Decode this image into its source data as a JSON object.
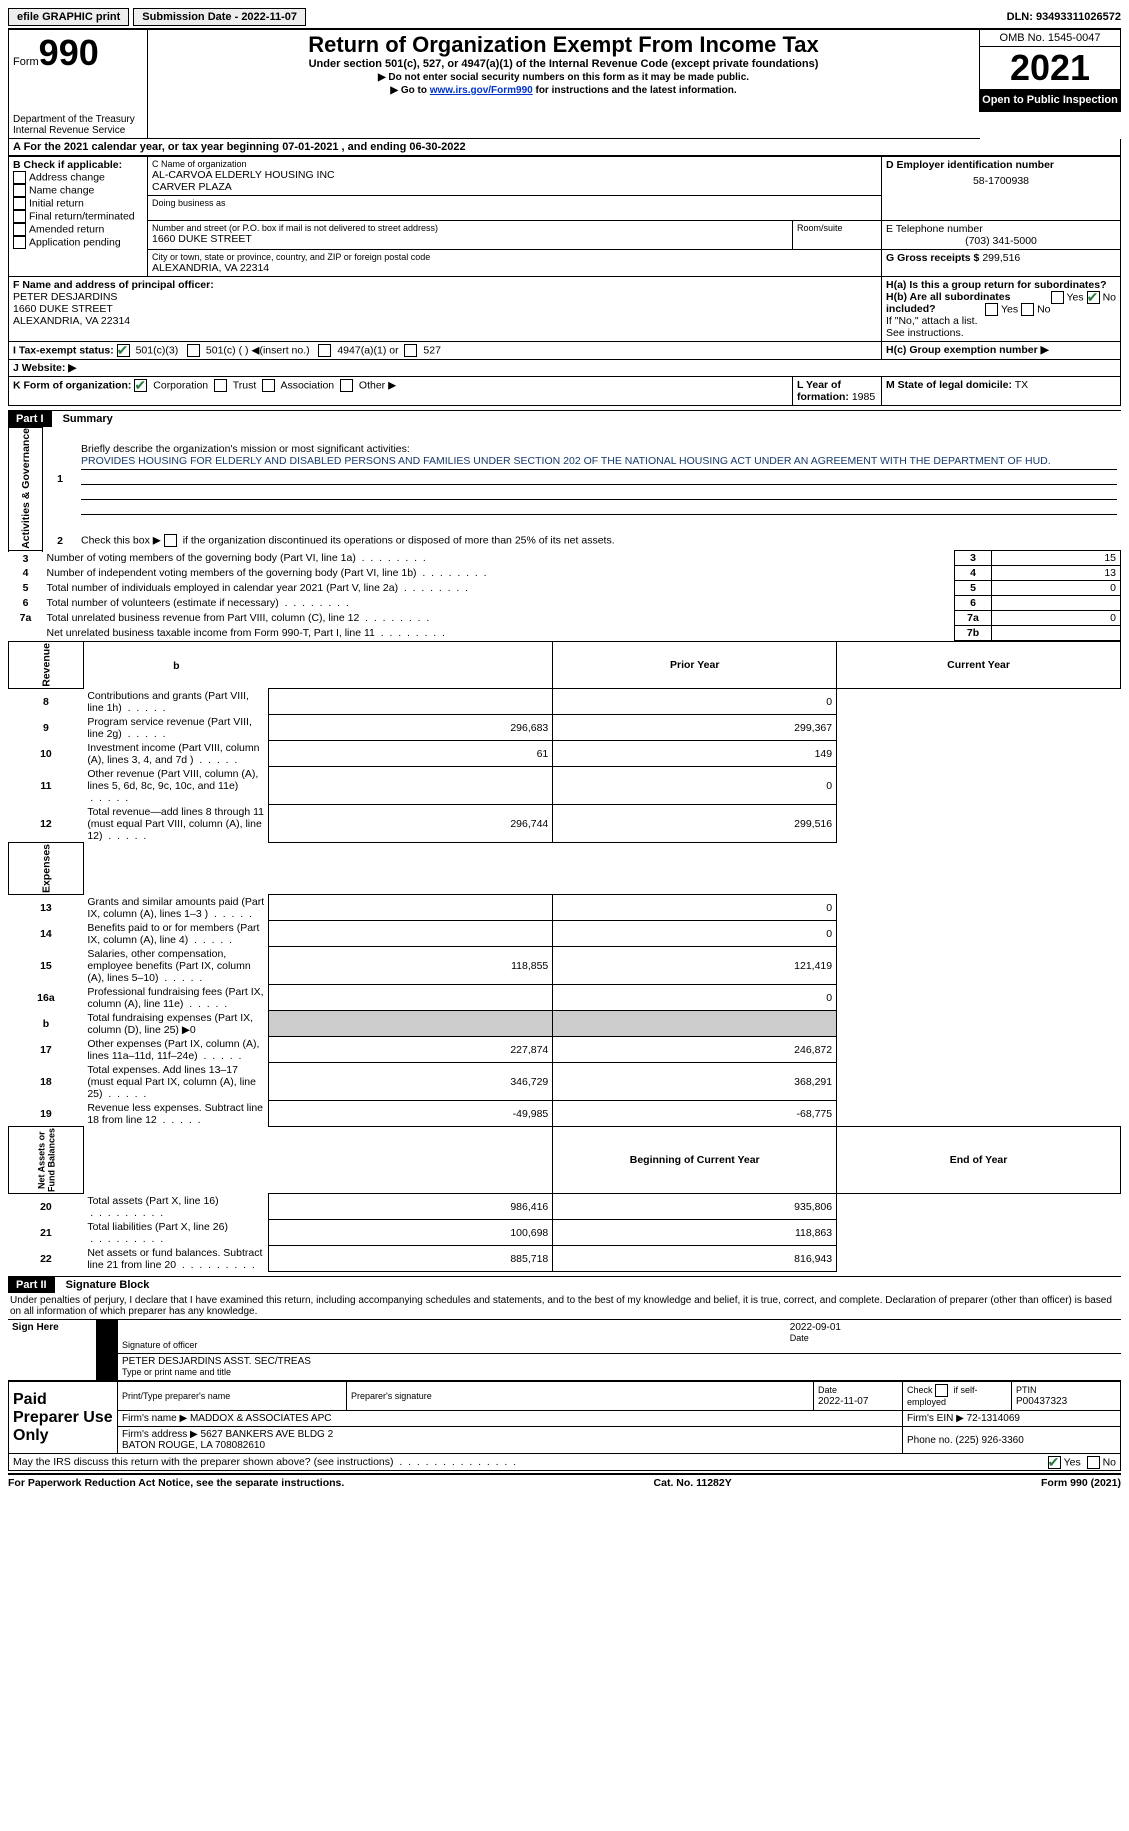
{
  "topbar": {
    "efile": "efile GRAPHIC print",
    "sub_date_label": "Submission Date - 2022-11-07",
    "dln": "DLN: 93493311026572"
  },
  "header": {
    "form_label": "Form",
    "form_num": "990",
    "dept": "Department of the Treasury\nInternal Revenue Service",
    "title": "Return of Organization Exempt From Income Tax",
    "subtitle": "Under section 501(c), 527, or 4947(a)(1) of the Internal Revenue Code (except private foundations)",
    "arrow1": "Do not enter social security numbers on this form as it may be made public.",
    "arrow2_pre": "Go to ",
    "arrow2_link": "www.irs.gov/Form990",
    "arrow2_post": " for instructions and the latest information.",
    "omb": "OMB No. 1545-0047",
    "year": "2021",
    "inspection": "Open to Public Inspection"
  },
  "sectionA": {
    "text": "A For the 2021 calendar year, or tax year beginning 07-01-2021    , and ending 06-30-2022"
  },
  "sectionB": {
    "label": "B Check if applicable:",
    "items": [
      "Address change",
      "Name change",
      "Initial return",
      "Final return/terminated",
      "Amended return",
      "Application pending"
    ]
  },
  "sectionC": {
    "name_label": "C Name of organization",
    "name": "AL-CARVOA ELDERLY HOUSING INC\nCARVER PLAZA",
    "dba_label": "Doing business as",
    "addr_label": "Number and street (or P.O. box if mail is not delivered to street address)",
    "room_label": "Room/suite",
    "addr": "1660 DUKE STREET",
    "city_label": "City or town, state or province, country, and ZIP or foreign postal code",
    "city": "ALEXANDRIA, VA  22314"
  },
  "sectionD": {
    "label": "D Employer identification number",
    "value": "58-1700938"
  },
  "sectionE": {
    "label": "E Telephone number",
    "value": "(703) 341-5000"
  },
  "sectionG": {
    "label": "G Gross receipts $",
    "value": "299,516"
  },
  "sectionF": {
    "label": "F Name and address of principal officer:",
    "value": "PETER DESJARDINS\n1660 DUKE STREET\nALEXANDRIA, VA  22314"
  },
  "sectionH": {
    "ha": "H(a)  Is this a group return for subordinates?",
    "hb": "H(b)  Are all subordinates included?",
    "hnote": "If \"No,\" attach a list. See instructions.",
    "hc": "H(c)  Group exemption number ▶",
    "yes": "Yes",
    "no": "No"
  },
  "sectionI": {
    "label": "I  Tax-exempt status:",
    "opt1": "501(c)(3)",
    "opt2": "501(c) (  ) ◀(insert no.)",
    "opt3": "4947(a)(1) or",
    "opt4": "527"
  },
  "sectionJ": {
    "label": "J  Website: ▶"
  },
  "sectionK": {
    "label": "K Form of organization:",
    "opts": [
      "Corporation",
      "Trust",
      "Association",
      "Other ▶"
    ]
  },
  "sectionL": {
    "label": "L Year of formation:",
    "value": "1985"
  },
  "sectionM": {
    "label": "M State of legal domicile:",
    "value": "TX"
  },
  "part1": {
    "header": "Part I",
    "title": "Summary",
    "line1_label": "Briefly describe the organization's mission or most significant activities:",
    "line1_text": "PROVIDES HOUSING FOR ELDERLY AND DISABLED PERSONS AND FAMILIES UNDER SECTION 202 OF THE NATIONAL HOUSING ACT UNDER AN AGREEMENT WITH THE DEPARTMENT OF HUD.",
    "line2": "Check this box ▶        if the organization discontinued its operations or disposed of more than 25% of its net assets.",
    "rows_ag": [
      {
        "n": "3",
        "t": "Number of voting members of the governing body (Part VI, line 1a)",
        "box": "3",
        "v": "15"
      },
      {
        "n": "4",
        "t": "Number of independent voting members of the governing body (Part VI, line 1b)",
        "box": "4",
        "v": "13"
      },
      {
        "n": "5",
        "t": "Total number of individuals employed in calendar year 2021 (Part V, line 2a)",
        "box": "5",
        "v": "0"
      },
      {
        "n": "6",
        "t": "Total number of volunteers (estimate if necessary)",
        "box": "6",
        "v": ""
      },
      {
        "n": "7a",
        "t": "Total unrelated business revenue from Part VIII, column (C), line 12",
        "box": "7a",
        "v": "0"
      },
      {
        "n": "",
        "t": "Net unrelated business taxable income from Form 990-T, Part I, line 11",
        "box": "7b",
        "v": ""
      }
    ],
    "col_prior": "Prior Year",
    "col_current": "Current Year",
    "revenue_rows": [
      {
        "n": "8",
        "t": "Contributions and grants (Part VIII, line 1h)",
        "p": "",
        "c": "0"
      },
      {
        "n": "9",
        "t": "Program service revenue (Part VIII, line 2g)",
        "p": "296,683",
        "c": "299,367"
      },
      {
        "n": "10",
        "t": "Investment income (Part VIII, column (A), lines 3, 4, and 7d )",
        "p": "61",
        "c": "149"
      },
      {
        "n": "11",
        "t": "Other revenue (Part VIII, column (A), lines 5, 6d, 8c, 9c, 10c, and 11e)",
        "p": "",
        "c": "0"
      },
      {
        "n": "12",
        "t": "Total revenue—add lines 8 through 11 (must equal Part VIII, column (A), line 12)",
        "p": "296,744",
        "c": "299,516"
      }
    ],
    "expense_rows": [
      {
        "n": "13",
        "t": "Grants and similar amounts paid (Part IX, column (A), lines 1–3 )",
        "p": "",
        "c": "0"
      },
      {
        "n": "14",
        "t": "Benefits paid to or for members (Part IX, column (A), line 4)",
        "p": "",
        "c": "0"
      },
      {
        "n": "15",
        "t": "Salaries, other compensation, employee benefits (Part IX, column (A), lines 5–10)",
        "p": "118,855",
        "c": "121,419"
      },
      {
        "n": "16a",
        "t": "Professional fundraising fees (Part IX, column (A), line 11e)",
        "p": "",
        "c": "0"
      },
      {
        "n": "b",
        "t": "Total fundraising expenses (Part IX, column (D), line 25) ▶0",
        "p": "shaded",
        "c": "shaded"
      },
      {
        "n": "17",
        "t": "Other expenses (Part IX, column (A), lines 11a–11d, 11f–24e)",
        "p": "227,874",
        "c": "246,872"
      },
      {
        "n": "18",
        "t": "Total expenses. Add lines 13–17 (must equal Part IX, column (A), line 25)",
        "p": "346,729",
        "c": "368,291"
      },
      {
        "n": "19",
        "t": "Revenue less expenses. Subtract line 18 from line 12",
        "p": "-49,985",
        "c": "-68,775"
      }
    ],
    "col_boy": "Beginning of Current Year",
    "col_eoy": "End of Year",
    "net_rows": [
      {
        "n": "20",
        "t": "Total assets (Part X, line 16)",
        "p": "986,416",
        "c": "935,806"
      },
      {
        "n": "21",
        "t": "Total liabilities (Part X, line 26)",
        "p": "100,698",
        "c": "118,863"
      },
      {
        "n": "22",
        "t": "Net assets or fund balances. Subtract line 21 from line 20",
        "p": "885,718",
        "c": "816,943"
      }
    ],
    "vlabels": {
      "ag": "Activities & Governance",
      "rev": "Revenue",
      "exp": "Expenses",
      "net": "Net Assets or\nFund Balances"
    }
  },
  "part2": {
    "header": "Part II",
    "title": "Signature Block",
    "penalty": "Under penalties of perjury, I declare that I have examined this return, including accompanying schedules and statements, and to the best of my knowledge and belief, it is true, correct, and complete. Declaration of preparer (other than officer) is based on all information of which preparer has any knowledge.",
    "sign_here": "Sign Here",
    "sig_officer": "Signature of officer",
    "sig_date": "2022-09-01",
    "date_label": "Date",
    "typed_name": "PETER DESJARDINS  ASST. SEC/TREAS",
    "typed_label": "Type or print name and title",
    "paid_label": "Paid Preparer Use Only",
    "prep_name_label": "Print/Type preparer's name",
    "prep_sig_label": "Preparer's signature",
    "prep_date_label": "Date",
    "prep_date": "2022-11-07",
    "check_self": "Check        if self-employed",
    "ptin_label": "PTIN",
    "ptin": "P00437323",
    "firm_name_label": "Firm's name     ▶",
    "firm_name": "MADDOX & ASSOCIATES APC",
    "firm_ein_label": "Firm's EIN ▶",
    "firm_ein": "72-1314069",
    "firm_addr_label": "Firm's address ▶",
    "firm_addr": "5627 BANKERS AVE BLDG 2\nBATON ROUGE, LA  708082610",
    "phone_label": "Phone no.",
    "phone": "(225) 926-3360",
    "discuss": "May the IRS discuss this return with the preparer shown above? (see instructions)",
    "yes": "Yes",
    "no": "No"
  },
  "footer": {
    "left": "For Paperwork Reduction Act Notice, see the separate instructions.",
    "mid": "Cat. No. 11282Y",
    "right": "Form 990 (2021)"
  }
}
